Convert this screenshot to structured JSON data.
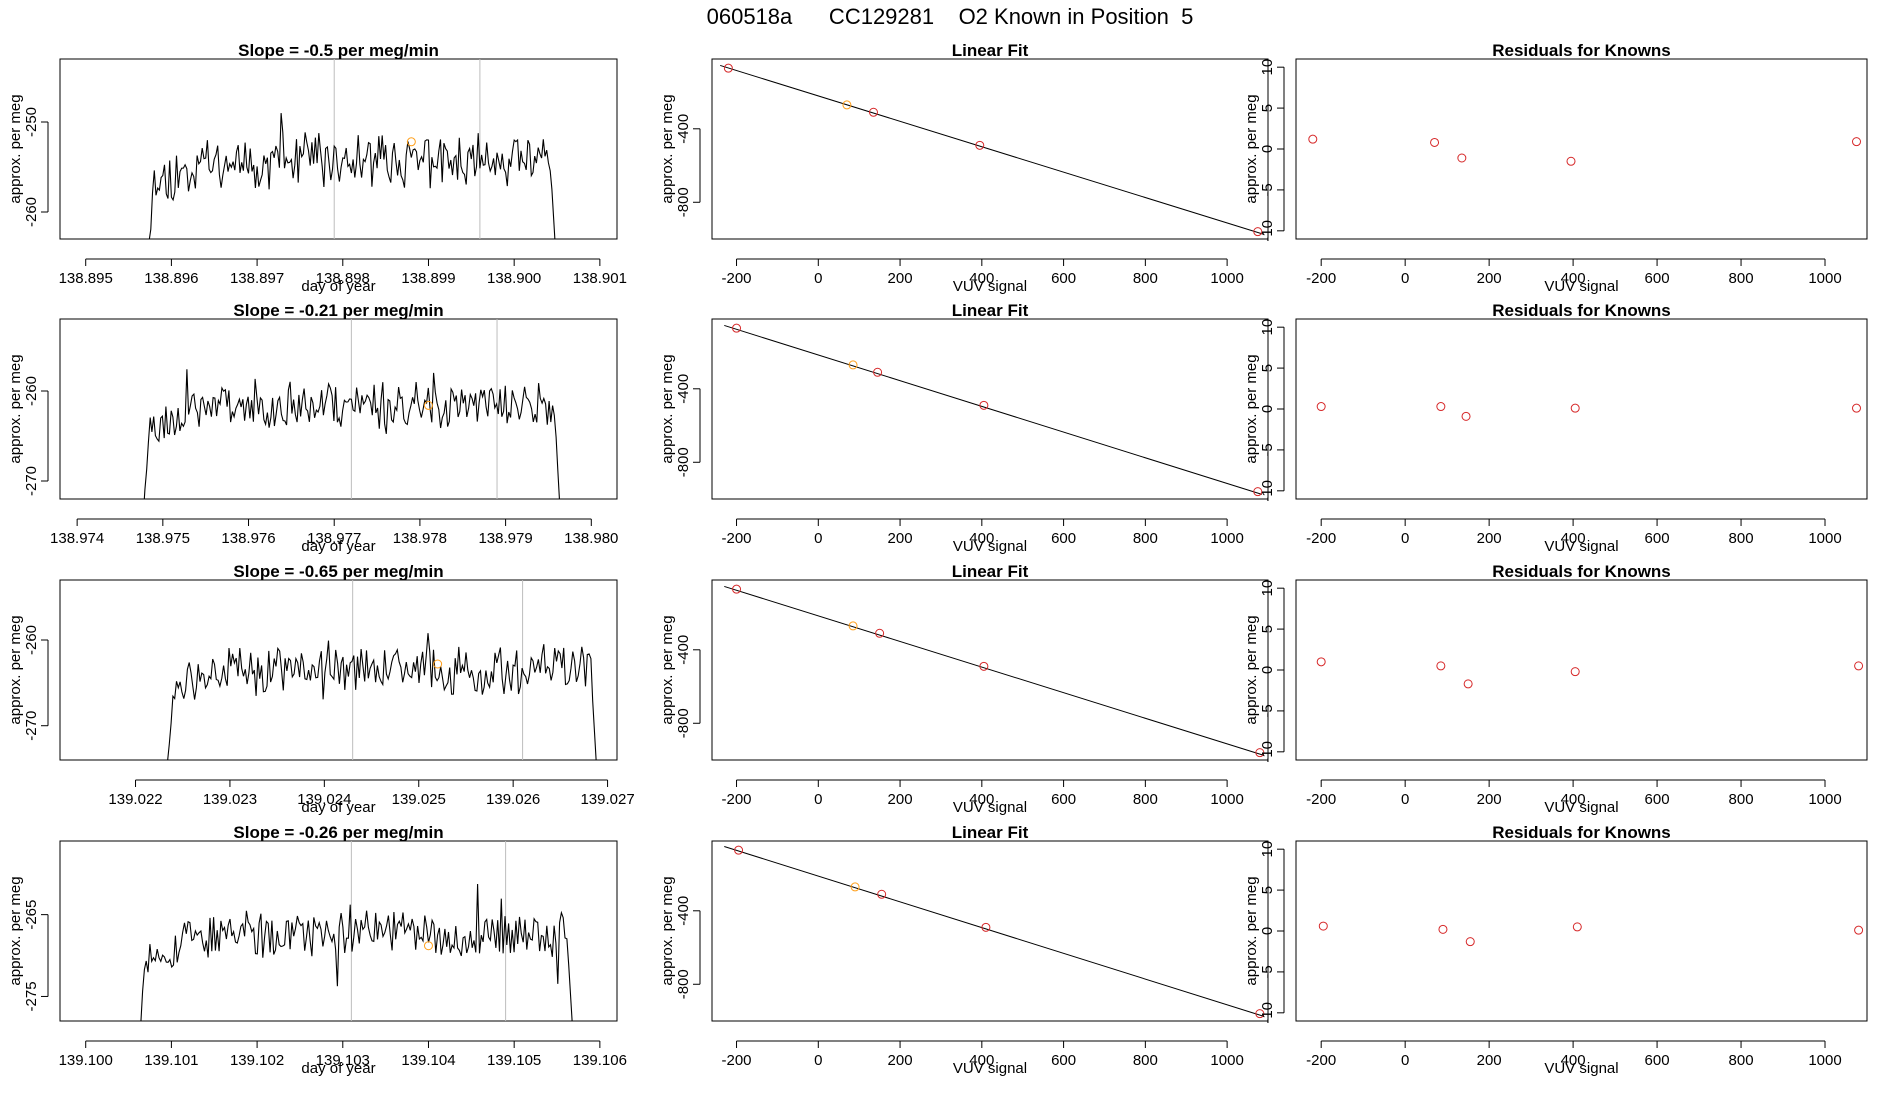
{
  "page_title": "060518a      CC129281    O2 Known in Position  5",
  "colors": {
    "series": "#000000",
    "ref_lines": "#bdbdbd",
    "known_points": "#d62728",
    "highlight_points": "#ff9f1a"
  },
  "chart_data": [
    {
      "type": "line",
      "title": "Slope =  -0.5  per meg/min",
      "xlabel": "day of year",
      "ylabel": "approx. per meg",
      "xlim": [
        138.8947,
        138.9012
      ],
      "ylim": [
        -263,
        -243
      ],
      "xticks": [
        "138.895",
        "138.896",
        "138.897",
        "138.898",
        "138.899",
        "138.900",
        "138.901"
      ],
      "yticks": [
        "-250",
        "-260"
      ],
      "ytick_values": [
        -250,
        -260
      ],
      "start": 138.8957,
      "end": 138.9005,
      "base": -254.3,
      "noise": 2.2,
      "seed": 11,
      "vlines": [
        138.8979,
        138.8996
      ],
      "marker": {
        "x": 138.8988,
        "y": -252.2
      }
    },
    {
      "type": "scatter",
      "title": "Linear Fit",
      "xlabel": "VUV signal",
      "ylabel": "approx. per meg",
      "xlim": [
        -260,
        1100
      ],
      "ylim": [
        -1000,
        -20
      ],
      "xticks": [
        "-200",
        "0",
        "200",
        "400",
        "600",
        "800",
        "1000"
      ],
      "xtick_values": [
        -200,
        0,
        200,
        400,
        600,
        800,
        1000
      ],
      "yticks": [
        "-400",
        "-800"
      ],
      "ytick_values": [
        -400,
        -800
      ],
      "points": [
        {
          "x": -220,
          "y": -70
        },
        {
          "x": 70,
          "y": -270
        },
        {
          "x": 135,
          "y": -310
        },
        {
          "x": 395,
          "y": -490
        },
        {
          "x": 1075,
          "y": -960
        }
      ],
      "highlight_index": 1,
      "fit": {
        "x": [
          -240,
          1090
        ],
        "y": [
          -55,
          -975
        ]
      }
    },
    {
      "type": "scatter",
      "title": "Residuals for Knowns",
      "xlabel": "VUV signal",
      "ylabel": "approx. per meg",
      "xlim": [
        -260,
        1100
      ],
      "ylim": [
        -11,
        11
      ],
      "xticks": [
        "-200",
        "0",
        "200",
        "400",
        "600",
        "800",
        "1000"
      ],
      "xtick_values": [
        -200,
        0,
        200,
        400,
        600,
        800,
        1000
      ],
      "yticks": [
        "10",
        "5",
        "0",
        "-5",
        "-10"
      ],
      "ytick_values": [
        10,
        5,
        0,
        -5,
        -10
      ],
      "points": [
        {
          "x": -220,
          "y": 1.2
        },
        {
          "x": 70,
          "y": 0.8
        },
        {
          "x": 135,
          "y": -1.1
        },
        {
          "x": 395,
          "y": -1.5
        },
        {
          "x": 1075,
          "y": 0.9
        }
      ]
    },
    {
      "type": "line",
      "title": "Slope =  -0.21  per meg/min",
      "xlabel": "day of year",
      "ylabel": "approx. per meg",
      "xlim": [
        138.9738,
        138.9803
      ],
      "ylim": [
        -272,
        -252
      ],
      "xticks": [
        "138.974",
        "138.975",
        "138.976",
        "138.977",
        "138.978",
        "138.979",
        "138.980"
      ],
      "yticks": [
        "-260",
        "-270"
      ],
      "ytick_values": [
        -260,
        -270
      ],
      "start": 138.97475,
      "end": 138.97965,
      "base": -261.5,
      "noise": 2.0,
      "seed": 23,
      "vlines": [
        138.9772,
        138.9789
      ],
      "marker": {
        "x": 138.9781,
        "y": -261.6
      }
    },
    {
      "type": "scatter",
      "title": "Linear Fit",
      "xlabel": "VUV signal",
      "ylabel": "approx. per meg",
      "xlim": [
        -260,
        1100
      ],
      "ylim": [
        -1000,
        -20
      ],
      "xticks": [
        "-200",
        "0",
        "200",
        "400",
        "600",
        "800",
        "1000"
      ],
      "xtick_values": [
        -200,
        0,
        200,
        400,
        600,
        800,
        1000
      ],
      "yticks": [
        "-400",
        "-800"
      ],
      "ytick_values": [
        -400,
        -800
      ],
      "points": [
        {
          "x": -200,
          "y": -70
        },
        {
          "x": 85,
          "y": -270
        },
        {
          "x": 145,
          "y": -310
        },
        {
          "x": 405,
          "y": -490
        },
        {
          "x": 1075,
          "y": -960
        }
      ],
      "highlight_index": 1,
      "fit": {
        "x": [
          -230,
          1085
        ],
        "y": [
          -55,
          -975
        ]
      }
    },
    {
      "type": "scatter",
      "title": "Residuals for Knowns",
      "xlabel": "VUV signal",
      "ylabel": "approx. per meg",
      "xlim": [
        -260,
        1100
      ],
      "ylim": [
        -11,
        11
      ],
      "xticks": [
        "-200",
        "0",
        "200",
        "400",
        "600",
        "800",
        "1000"
      ],
      "xtick_values": [
        -200,
        0,
        200,
        400,
        600,
        800,
        1000
      ],
      "yticks": [
        "10",
        "5",
        "0",
        "-5",
        "-10"
      ],
      "ytick_values": [
        10,
        5,
        0,
        -5,
        -10
      ],
      "points": [
        {
          "x": -200,
          "y": 0.3
        },
        {
          "x": 85,
          "y": 0.3
        },
        {
          "x": 145,
          "y": -0.9
        },
        {
          "x": 405,
          "y": 0.1
        },
        {
          "x": 1075,
          "y": 0.1
        }
      ]
    },
    {
      "type": "line",
      "title": "Slope =  -0.65  per meg/min",
      "xlabel": "day of year",
      "ylabel": "approx. per meg",
      "xlim": [
        139.0212,
        139.0271
      ],
      "ylim": [
        -274,
        -253
      ],
      "xticks": [
        "139.022",
        "139.023",
        "139.024",
        "139.025",
        "139.026",
        "139.027"
      ],
      "yticks": [
        "-260",
        "-270"
      ],
      "ytick_values": [
        -260,
        -270
      ],
      "start": 139.0223,
      "end": 139.0269,
      "base": -263.5,
      "noise": 2.2,
      "seed": 37,
      "vlines": [
        139.0243,
        139.0261
      ],
      "marker": {
        "x": 139.0252,
        "y": -262.8
      }
    },
    {
      "type": "scatter",
      "title": "Linear Fit",
      "xlabel": "VUV signal",
      "ylabel": "approx. per meg",
      "xlim": [
        -260,
        1100
      ],
      "ylim": [
        -1000,
        -20
      ],
      "xticks": [
        "-200",
        "0",
        "200",
        "400",
        "600",
        "800",
        "1000"
      ],
      "xtick_values": [
        -200,
        0,
        200,
        400,
        600,
        800,
        1000
      ],
      "yticks": [
        "-400",
        "-800"
      ],
      "ytick_values": [
        -400,
        -800
      ],
      "points": [
        {
          "x": -200,
          "y": -70
        },
        {
          "x": 85,
          "y": -270
        },
        {
          "x": 150,
          "y": -310
        },
        {
          "x": 405,
          "y": -490
        },
        {
          "x": 1080,
          "y": -960
        }
      ],
      "highlight_index": 1,
      "fit": {
        "x": [
          -230,
          1090
        ],
        "y": [
          -55,
          -975
        ]
      }
    },
    {
      "type": "scatter",
      "title": "Residuals for Knowns",
      "xlabel": "VUV signal",
      "ylabel": "approx. per meg",
      "xlim": [
        -260,
        1100
      ],
      "ylim": [
        -11,
        11
      ],
      "xticks": [
        "-200",
        "0",
        "200",
        "400",
        "600",
        "800",
        "1000"
      ],
      "xtick_values": [
        -200,
        0,
        200,
        400,
        600,
        800,
        1000
      ],
      "yticks": [
        "10",
        "5",
        "0",
        "-5",
        "-10"
      ],
      "ytick_values": [
        10,
        5,
        0,
        -5,
        -10
      ],
      "points": [
        {
          "x": -200,
          "y": 1.0
        },
        {
          "x": 85,
          "y": 0.5
        },
        {
          "x": 150,
          "y": -1.7
        },
        {
          "x": 405,
          "y": -0.2
        },
        {
          "x": 1080,
          "y": 0.5
        }
      ]
    },
    {
      "type": "line",
      "title": "Slope =  -0.26  per meg/min",
      "xlabel": "day of year",
      "ylabel": "approx. per meg",
      "xlim": [
        139.0997,
        139.1062
      ],
      "ylim": [
        -278,
        -256
      ],
      "xticks": [
        "139.100",
        "139.101",
        "139.102",
        "139.103",
        "139.104",
        "139.105",
        "139.106"
      ],
      "yticks": [
        "-265",
        "-275"
      ],
      "ytick_values": [
        -265,
        -275
      ],
      "start": 139.1006,
      "end": 139.1057,
      "base": -267.5,
      "noise": 2.2,
      "seed": 53,
      "vlines": [
        139.1031,
        139.1049
      ],
      "marker": {
        "x": 139.104,
        "y": -268.8
      }
    },
    {
      "type": "scatter",
      "title": "Linear Fit",
      "xlabel": "VUV signal",
      "ylabel": "approx. per meg",
      "xlim": [
        -260,
        1100
      ],
      "ylim": [
        -1000,
        -20
      ],
      "xticks": [
        "-200",
        "0",
        "200",
        "400",
        "600",
        "800",
        "1000"
      ],
      "xtick_values": [
        -200,
        0,
        200,
        400,
        600,
        800,
        1000
      ],
      "yticks": [
        "-400",
        "-800"
      ],
      "ytick_values": [
        -400,
        -800
      ],
      "points": [
        {
          "x": -195,
          "y": -70
        },
        {
          "x": 90,
          "y": -270
        },
        {
          "x": 155,
          "y": -310
        },
        {
          "x": 410,
          "y": -490
        },
        {
          "x": 1080,
          "y": -960
        }
      ],
      "highlight_index": 1,
      "fit": {
        "x": [
          -230,
          1090
        ],
        "y": [
          -50,
          -975
        ]
      }
    },
    {
      "type": "scatter",
      "title": "Residuals for Knowns",
      "xlabel": "VUV signal",
      "ylabel": "approx. per meg",
      "xlim": [
        -260,
        1100
      ],
      "ylim": [
        -11,
        11
      ],
      "xticks": [
        "-200",
        "0",
        "200",
        "400",
        "600",
        "800",
        "1000"
      ],
      "xtick_values": [
        -200,
        0,
        200,
        400,
        600,
        800,
        1000
      ],
      "yticks": [
        "10",
        "5",
        "0",
        "-5",
        "-10"
      ],
      "ytick_values": [
        10,
        5,
        0,
        -5,
        -10
      ],
      "points": [
        {
          "x": -195,
          "y": 0.6
        },
        {
          "x": 90,
          "y": 0.2
        },
        {
          "x": 155,
          "y": -1.3
        },
        {
          "x": 410,
          "y": 0.5
        },
        {
          "x": 1080,
          "y": 0.1
        }
      ]
    }
  ]
}
